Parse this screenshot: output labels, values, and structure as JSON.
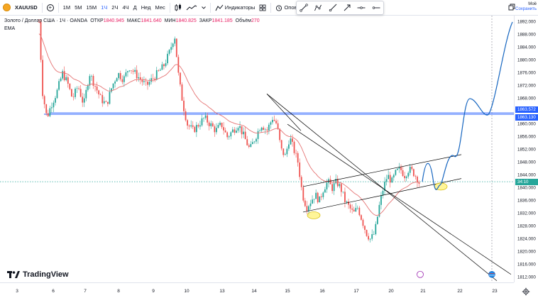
{
  "toolbar": {
    "symbol": "XAUUSD",
    "timeframes": [
      "1М",
      "5М",
      "15М",
      "1Ч",
      "2Ч",
      "4Ч",
      "Д",
      "Нед",
      "Мес"
    ],
    "active_timeframe": "1Ч",
    "indicators_label": "Индикаторы",
    "alerts_label": "Оповещен",
    "save_top": "Моё",
    "save_bottom": "Сохранить"
  },
  "legend": {
    "title": "Золото / Доллар США · 1Ч · OANDA",
    "open_label": "ОТКР",
    "open": "1840.945",
    "high_label": "МАКС",
    "high": "1841.640",
    "low_label": "МИН",
    "low": "1840.825",
    "close_label": "ЗАКР",
    "close": "1841.185",
    "volume_label": "Объём",
    "volume": "270",
    "indicator": "EMA"
  },
  "price_axis": {
    "ticks": [
      "1892.000",
      "1888.000",
      "1884.000",
      "1880.000",
      "1876.000",
      "1872.000",
      "1868.000",
      "1864.000",
      "1860.000",
      "1856.000",
      "1852.000",
      "1848.000",
      "1844.000",
      "1840.000",
      "1836.000",
      "1832.000",
      "1828.000",
      "1824.000",
      "1820.000",
      "1816.000",
      "1812.000"
    ],
    "badge_upper": "1863.572",
    "badge_lower": "1863.130",
    "current_badge": "34:10",
    "current_price": "1842.000"
  },
  "time_axis": {
    "ticks": [
      "3",
      "6",
      "7",
      "8",
      "9",
      "10",
      "13",
      "14",
      "15",
      "16",
      "17",
      "20",
      "21",
      "22",
      "23"
    ]
  },
  "brand": {
    "name": "TradingView"
  },
  "colors": {
    "accent": "#2962ff",
    "candle_up": "#26a69a",
    "candle_down": "#ef5350",
    "ema": "#e57373",
    "channel": "#000000",
    "forecast": "#1565c0",
    "highlight": "#fff176"
  },
  "chart_data": {
    "type": "candlestick",
    "symbol": "XAUUSD",
    "interval": "1H",
    "y_range": [
      1812,
      1894
    ],
    "x_ticks": [
      "3",
      "6",
      "7",
      "8",
      "9",
      "10",
      "13",
      "14",
      "15",
      "16",
      "17",
      "20",
      "21",
      "22",
      "23"
    ],
    "horizontal_levels": [
      1863.572,
      1863.13
    ],
    "current_price": 1842.0,
    "indicator": "EMA",
    "annotations": [
      "descending trend line",
      "ascending channel",
      "forecast path to ~1892"
    ]
  }
}
